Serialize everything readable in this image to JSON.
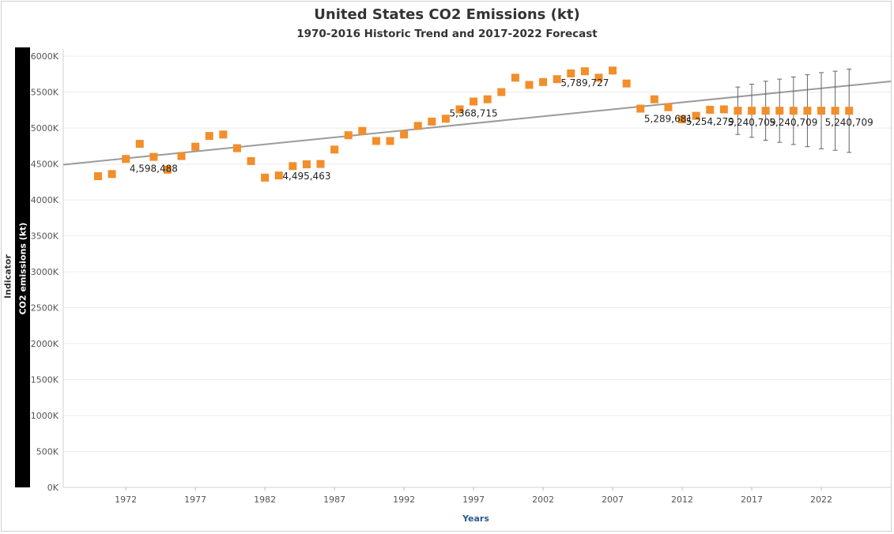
{
  "chart_data": {
    "type": "scatter",
    "title": "United States CO2 Emissions (kt)",
    "subtitle": "1970-2016 Historic Trend and 2017-2022 Forecast",
    "row_title": "Indicator",
    "row_header": "CO2 emissions (kt)",
    "xlabel": "Years",
    "xlim": [
      1967.5,
      2027
    ],
    "ylim": [
      0,
      6100000
    ],
    "x_ticks": [
      1972,
      1977,
      1982,
      1987,
      1992,
      1997,
      2002,
      2007,
      2012,
      2017,
      2022
    ],
    "y_ticks": [
      {
        "value": 0,
        "label": "0K"
      },
      {
        "value": 500000,
        "label": "500K"
      },
      {
        "value": 1000000,
        "label": "1000K"
      },
      {
        "value": 1500000,
        "label": "1500K"
      },
      {
        "value": 2000000,
        "label": "2000K"
      },
      {
        "value": 2500000,
        "label": "2500K"
      },
      {
        "value": 3000000,
        "label": "3000K"
      },
      {
        "value": 3500000,
        "label": "3500K"
      },
      {
        "value": 4000000,
        "label": "4000K"
      },
      {
        "value": 4500000,
        "label": "4500K"
      },
      {
        "value": 5000000,
        "label": "5000K"
      },
      {
        "value": 5500000,
        "label": "5500K"
      },
      {
        "value": 6000000,
        "label": "6000K"
      }
    ],
    "grid": true,
    "marker_color": "#f28e2b",
    "trend_color": "#9a9a9a",
    "error_bar_color": "#666666",
    "trend_line": {
      "x": [
        1967.5,
        2027
      ],
      "y": [
        4490000,
        5650000
      ]
    },
    "points": [
      {
        "x": 1970,
        "y": 4330000
      },
      {
        "x": 1971,
        "y": 4360000
      },
      {
        "x": 1972,
        "y": 4570000
      },
      {
        "x": 1973,
        "y": 4780000
      },
      {
        "x": 1974,
        "y": 4598488,
        "label": "4,598,488"
      },
      {
        "x": 1975,
        "y": 4420000
      },
      {
        "x": 1976,
        "y": 4610000
      },
      {
        "x": 1977,
        "y": 4740000
      },
      {
        "x": 1978,
        "y": 4890000
      },
      {
        "x": 1979,
        "y": 4910000
      },
      {
        "x": 1980,
        "y": 4720000
      },
      {
        "x": 1981,
        "y": 4540000
      },
      {
        "x": 1982,
        "y": 4310000
      },
      {
        "x": 1983,
        "y": 4340000
      },
      {
        "x": 1984,
        "y": 4470000
      },
      {
        "x": 1985,
        "y": 4495463,
        "label": "4,495,463"
      },
      {
        "x": 1986,
        "y": 4500000
      },
      {
        "x": 1987,
        "y": 4700000
      },
      {
        "x": 1988,
        "y": 4900000
      },
      {
        "x": 1989,
        "y": 4960000
      },
      {
        "x": 1990,
        "y": 4820000
      },
      {
        "x": 1991,
        "y": 4820000
      },
      {
        "x": 1992,
        "y": 4910000
      },
      {
        "x": 1993,
        "y": 5030000
      },
      {
        "x": 1994,
        "y": 5090000
      },
      {
        "x": 1995,
        "y": 5130000
      },
      {
        "x": 1996,
        "y": 5260000
      },
      {
        "x": 1997,
        "y": 5368715,
        "label": "5,368,715"
      },
      {
        "x": 1998,
        "y": 5400000
      },
      {
        "x": 1999,
        "y": 5500000
      },
      {
        "x": 2000,
        "y": 5700000
      },
      {
        "x": 2001,
        "y": 5600000
      },
      {
        "x": 2002,
        "y": 5640000
      },
      {
        "x": 2003,
        "y": 5680000
      },
      {
        "x": 2004,
        "y": 5760000
      },
      {
        "x": 2005,
        "y": 5789727,
        "label": "5,789,727"
      },
      {
        "x": 2006,
        "y": 5700000
      },
      {
        "x": 2007,
        "y": 5800000
      },
      {
        "x": 2008,
        "y": 5620000
      },
      {
        "x": 2009,
        "y": 5270000
      },
      {
        "x": 2010,
        "y": 5400000
      },
      {
        "x": 2011,
        "y": 5289681,
        "label": "5,289,681"
      },
      {
        "x": 2012,
        "y": 5120000
      },
      {
        "x": 2013,
        "y": 5170000
      },
      {
        "x": 2014,
        "y": 5254279,
        "label": "5,254,279"
      },
      {
        "x": 2015,
        "y": 5260000
      },
      {
        "x": 2016,
        "y": 5240709,
        "forecast": true,
        "err": 330000
      },
      {
        "x": 2017,
        "y": 5240709,
        "forecast": true,
        "err": 370000,
        "label": "5,240,709"
      },
      {
        "x": 2018,
        "y": 5240709,
        "forecast": true,
        "err": 410000
      },
      {
        "x": 2019,
        "y": 5240709,
        "forecast": true,
        "err": 440000
      },
      {
        "x": 2020,
        "y": 5240709,
        "forecast": true,
        "err": 470000,
        "label": "5,240,709"
      },
      {
        "x": 2021,
        "y": 5240709,
        "forecast": true,
        "err": 500000
      },
      {
        "x": 2022,
        "y": 5240709,
        "forecast": true,
        "err": 530000
      },
      {
        "x": 2023,
        "y": 5240709,
        "forecast": true,
        "err": 550000
      },
      {
        "x": 2024,
        "y": 5240709,
        "forecast": true,
        "err": 580000,
        "label": "5,240,709"
      }
    ]
  }
}
